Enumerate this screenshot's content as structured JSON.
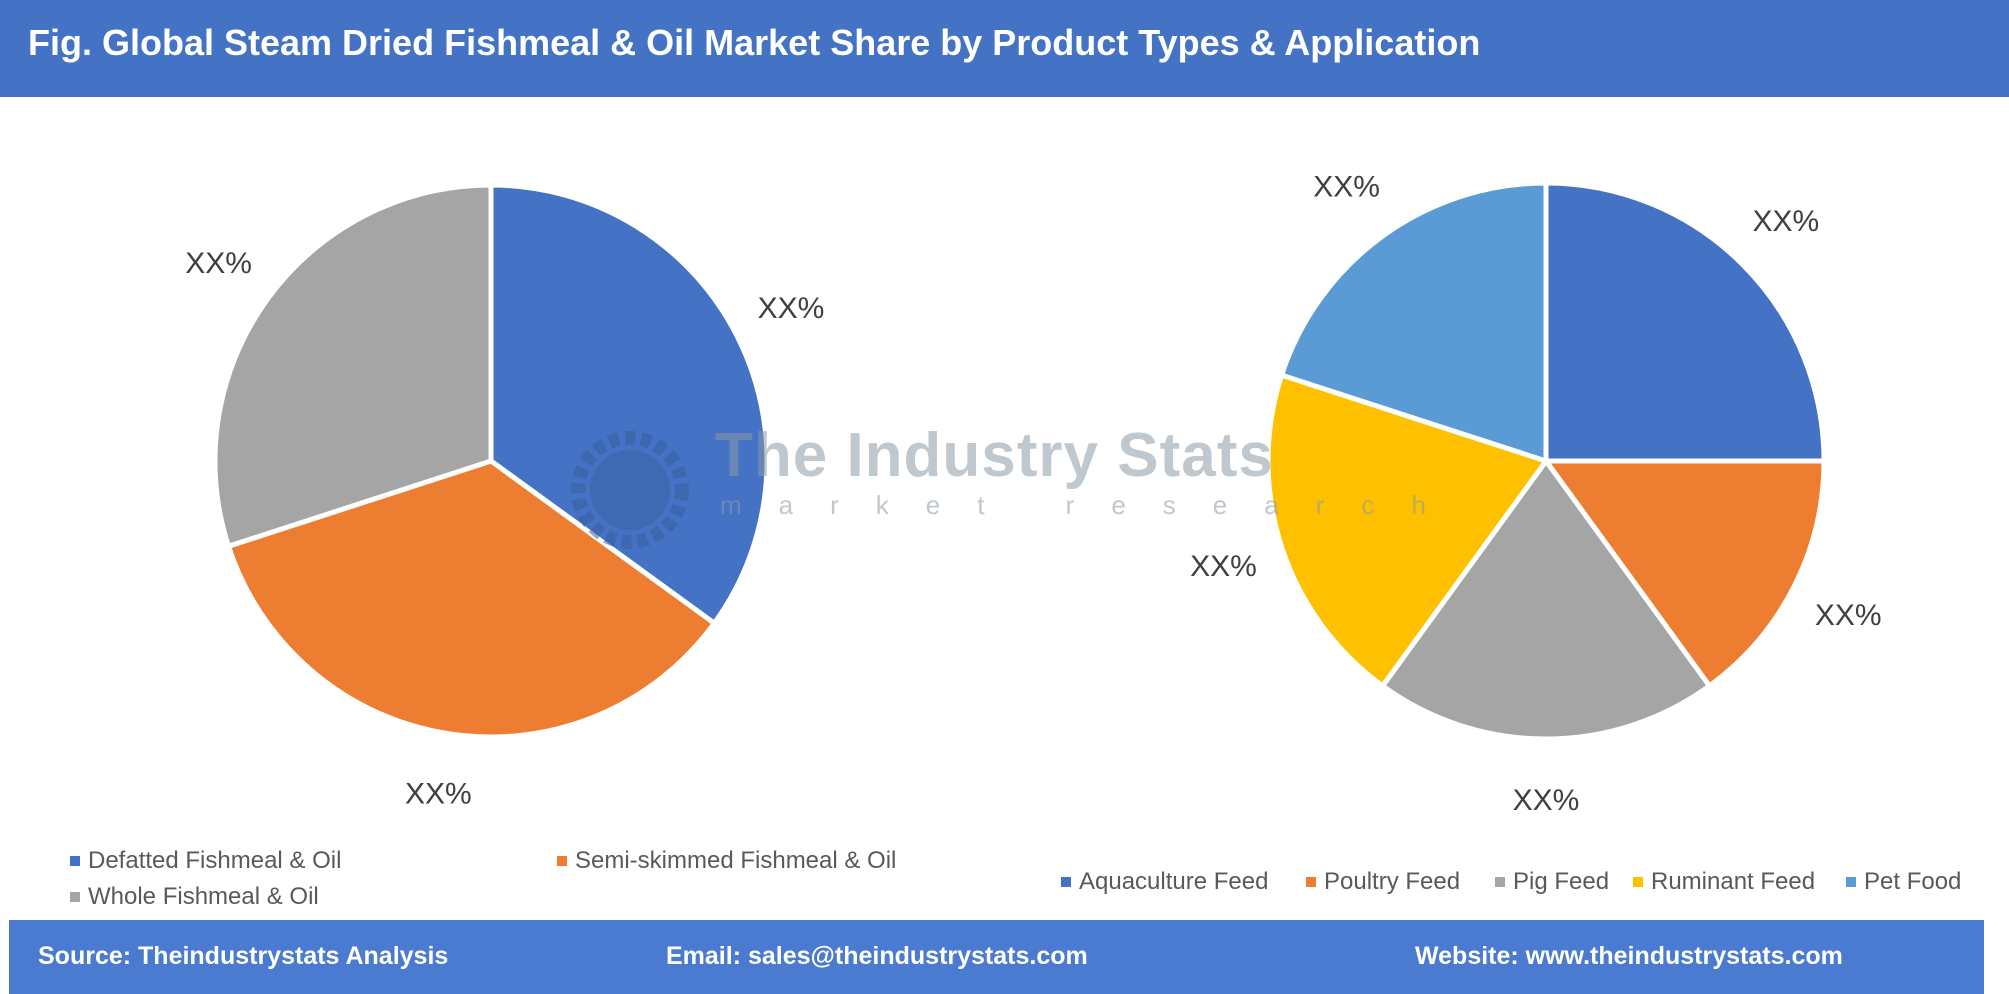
{
  "header": {
    "title": "Fig. Global Steam Dried Fishmeal & Oil Market Share by Product Types & Application"
  },
  "watermark": {
    "name": "The Industry Stats",
    "tagline": "market research"
  },
  "chart_data": [
    {
      "type": "pie",
      "title": "",
      "start": "top",
      "direction": "clockwise",
      "legend_position": "bottom",
      "categories": [
        "Defatted Fishmeal & Oil",
        "Semi-skimmed Fishmeal & Oil",
        "Whole Fishmeal & Oil"
      ],
      "values": [
        35,
        35,
        30
      ],
      "data_labels": [
        "XX%",
        "XX%",
        "XX%"
      ],
      "colors": [
        "#4472c4",
        "#ed7d31",
        "#a5a5a5"
      ]
    },
    {
      "type": "pie",
      "title": "",
      "start": "top",
      "direction": "clockwise",
      "legend_position": "bottom",
      "categories": [
        "Aquaculture Feed",
        "Poultry Feed",
        "Pig Feed",
        "Ruminant Feed",
        "Pet Food"
      ],
      "values": [
        25,
        15,
        20,
        20,
        20
      ],
      "data_labels": [
        "XX%",
        "XX%",
        "XX%",
        "XX%",
        "XX%"
      ],
      "colors": [
        "#4472c4",
        "#ed7d31",
        "#a5a5a5",
        "#ffc000",
        "#5b9bd5"
      ]
    }
  ],
  "footer": {
    "source": "Source: Theindustrystats Analysis",
    "email": "Email: sales@theindustrystats.com",
    "website": "Website: www.theindustrystats.com"
  }
}
